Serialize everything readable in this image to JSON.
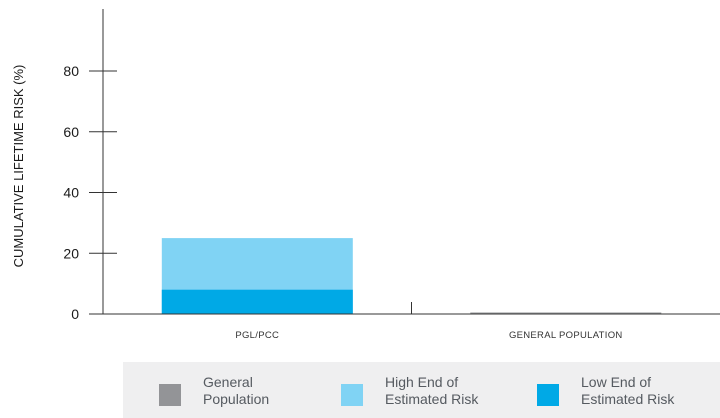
{
  "chart_data": {
    "type": "bar",
    "title": "",
    "xlabel": "",
    "ylabel": "CUMULATIVE LIFETIME RISK (%)",
    "ylim": [
      0,
      100
    ],
    "yticks": [
      0,
      20,
      40,
      60,
      80
    ],
    "categories": [
      "PGL/PCC",
      "GENERAL POPULATION"
    ],
    "series": [
      {
        "name": "General Population",
        "values": [
          0,
          0.5
        ],
        "color": "#939497"
      },
      {
        "name": "Low End of Estimated Risk",
        "values": [
          8,
          0
        ],
        "color": "#00a9e6"
      },
      {
        "name": "High End of Estimated Risk",
        "values": [
          25,
          0
        ],
        "color": "#80d3f4"
      }
    ],
    "grid": false,
    "legend_position": "bottom"
  },
  "legend": {
    "items": [
      {
        "line1": "General",
        "line2": "Population",
        "color": "#939497"
      },
      {
        "line1": "High End of",
        "line2": "Estimated Risk",
        "color": "#80d3f4"
      },
      {
        "line1": "Low End of",
        "line2": "Estimated Risk",
        "color": "#00a9e6"
      }
    ]
  }
}
